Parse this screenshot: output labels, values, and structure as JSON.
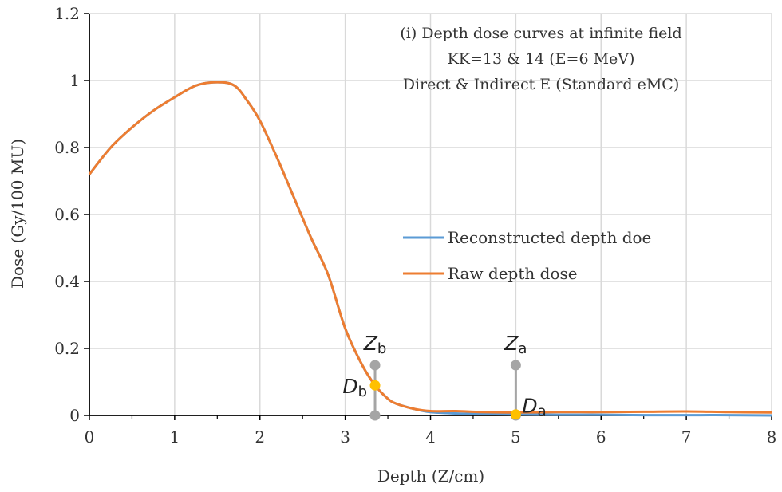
{
  "chart_data": {
    "type": "line",
    "title": "",
    "annotation_lines": [
      "(i) Depth dose curves at infinite field",
      "KK=13 & 14 (E=6 MeV)",
      "Direct & Indirect E (Standard eMC)"
    ],
    "xlabel": "Depth (Z/cm)",
    "ylabel": "Dose (Gy/100 MU)",
    "xlim": [
      0,
      8
    ],
    "ylim": [
      0,
      1.2
    ],
    "xticks": [
      "0",
      "1",
      "2",
      "3",
      "4",
      "5",
      "6",
      "7",
      "8"
    ],
    "yticks": [
      "0",
      "0.2",
      "0.4",
      "0.6",
      "0.8",
      "1",
      "1.2"
    ],
    "grid": true,
    "legend_position": "center-right",
    "series": [
      {
        "name": "Reconstructed depth doe",
        "color": "#5B9BD5",
        "x": [
          0,
          0.25,
          0.5,
          0.75,
          1.0,
          1.25,
          1.5,
          1.7,
          1.85,
          2.0,
          2.2,
          2.4,
          2.6,
          2.8,
          3.0,
          3.2,
          3.35,
          3.5,
          3.6,
          3.8,
          4.0,
          4.3,
          4.6,
          5.0,
          5.5,
          6.0,
          6.5,
          7.0,
          7.5,
          8.0
        ],
        "y": [
          0.72,
          0.8,
          0.86,
          0.91,
          0.95,
          0.985,
          0.995,
          0.985,
          0.94,
          0.88,
          0.77,
          0.65,
          0.53,
          0.42,
          0.26,
          0.15,
          0.09,
          0.05,
          0.035,
          0.02,
          0.01,
          0.006,
          0.004,
          0.003,
          0.002,
          0.002,
          0.001,
          0.001,
          0.001,
          0.0
        ]
      },
      {
        "name": "Raw depth dose",
        "color": "#ED7D31",
        "x": [
          0,
          0.25,
          0.5,
          0.75,
          1.0,
          1.25,
          1.5,
          1.7,
          1.85,
          2.0,
          2.2,
          2.4,
          2.6,
          2.8,
          3.0,
          3.2,
          3.35,
          3.5,
          3.6,
          3.8,
          4.0,
          4.3,
          4.6,
          5.0,
          5.5,
          6.0,
          6.5,
          7.0,
          7.5,
          8.0
        ],
        "y": [
          0.72,
          0.8,
          0.86,
          0.91,
          0.95,
          0.985,
          0.995,
          0.985,
          0.94,
          0.88,
          0.77,
          0.65,
          0.53,
          0.42,
          0.26,
          0.15,
          0.09,
          0.05,
          0.035,
          0.02,
          0.013,
          0.013,
          0.01,
          0.009,
          0.01,
          0.01,
          0.011,
          0.012,
          0.01,
          0.009
        ]
      }
    ],
    "markers": [
      {
        "label": "Z",
        "subscript": "b",
        "x": 3.35,
        "y": 0.15,
        "color": "#A5A5A5"
      },
      {
        "label": "D",
        "subscript": "b",
        "x": 3.35,
        "y": 0.09,
        "color": "#FFC000"
      },
      {
        "label": "Z",
        "subscript": "a",
        "x": 5.0,
        "y": 0.15,
        "color": "#A5A5A5"
      },
      {
        "label": "D",
        "subscript": "a",
        "x": 5.0,
        "y": 0.003,
        "color": "#FFC000"
      }
    ],
    "marker_baseline_y": 0.0
  }
}
